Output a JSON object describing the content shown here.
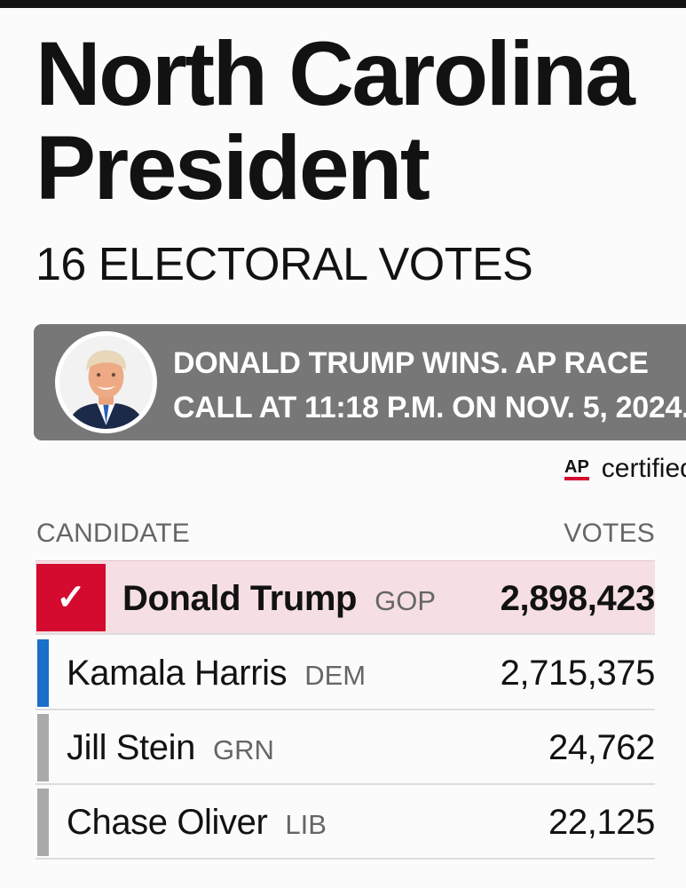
{
  "header": {
    "title_line1": "North Carolina",
    "title_line2": "President",
    "subtitle": "16 ELECTORAL VOTES"
  },
  "banner": {
    "line1": "DONALD TRUMP WINS. AP RACE",
    "line2": "CALL AT 11:18 P.M. ON NOV. 5, 2024.",
    "avatar": "candidate-portrait"
  },
  "certification": {
    "logo": "AP",
    "text": "certified"
  },
  "table": {
    "col_candidate": "CANDIDATE",
    "col_votes": "VOTES",
    "rows": [
      {
        "name": "Donald Trump",
        "party": "GOP",
        "votes": "2,898,423",
        "winner": true,
        "color": "#d40a2e"
      },
      {
        "name": "Kamala Harris",
        "party": "DEM",
        "votes": "2,715,375",
        "winner": false,
        "color": "#1a6fc9"
      },
      {
        "name": "Jill Stein",
        "party": "GRN",
        "votes": "24,762",
        "winner": false,
        "color": "#aaaaaa"
      },
      {
        "name": "Chase Oliver",
        "party": "LIB",
        "votes": "22,125",
        "winner": false,
        "color": "#aaaaaa"
      }
    ]
  },
  "colors": {
    "winner_row_bg": "#f5dfe3",
    "banner_bg": "#777777",
    "ap_red": "#d40a2e"
  }
}
